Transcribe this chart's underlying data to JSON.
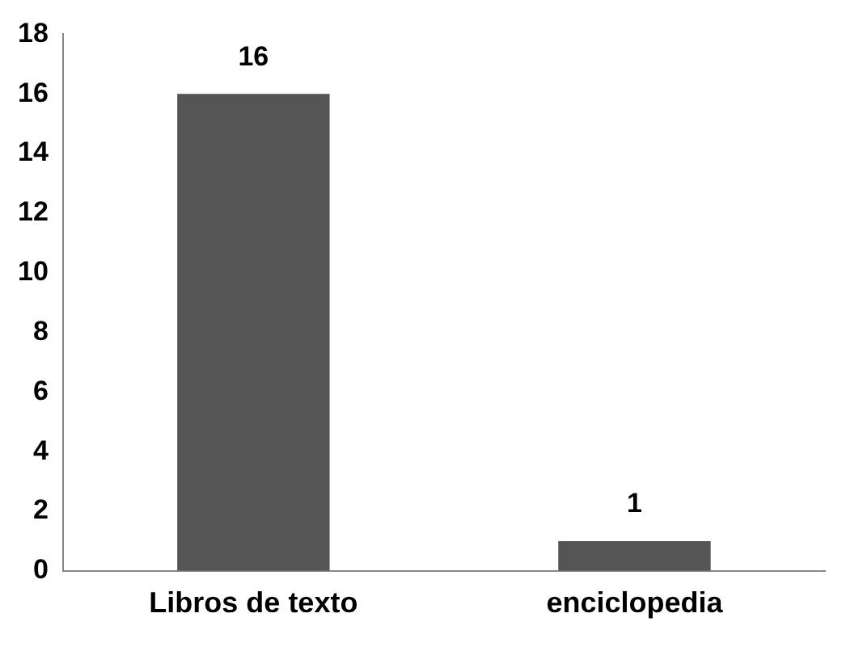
{
  "chart_data": {
    "type": "bar",
    "categories": [
      "Libros de texto",
      "enciclopedia"
    ],
    "values": [
      16,
      1
    ],
    "color": "#555555",
    "ylim": [
      0,
      18
    ],
    "yticks": [
      0,
      2,
      4,
      6,
      8,
      10,
      12,
      14,
      16,
      18
    ],
    "grid": false,
    "legend": false,
    "data_labels": true
  }
}
